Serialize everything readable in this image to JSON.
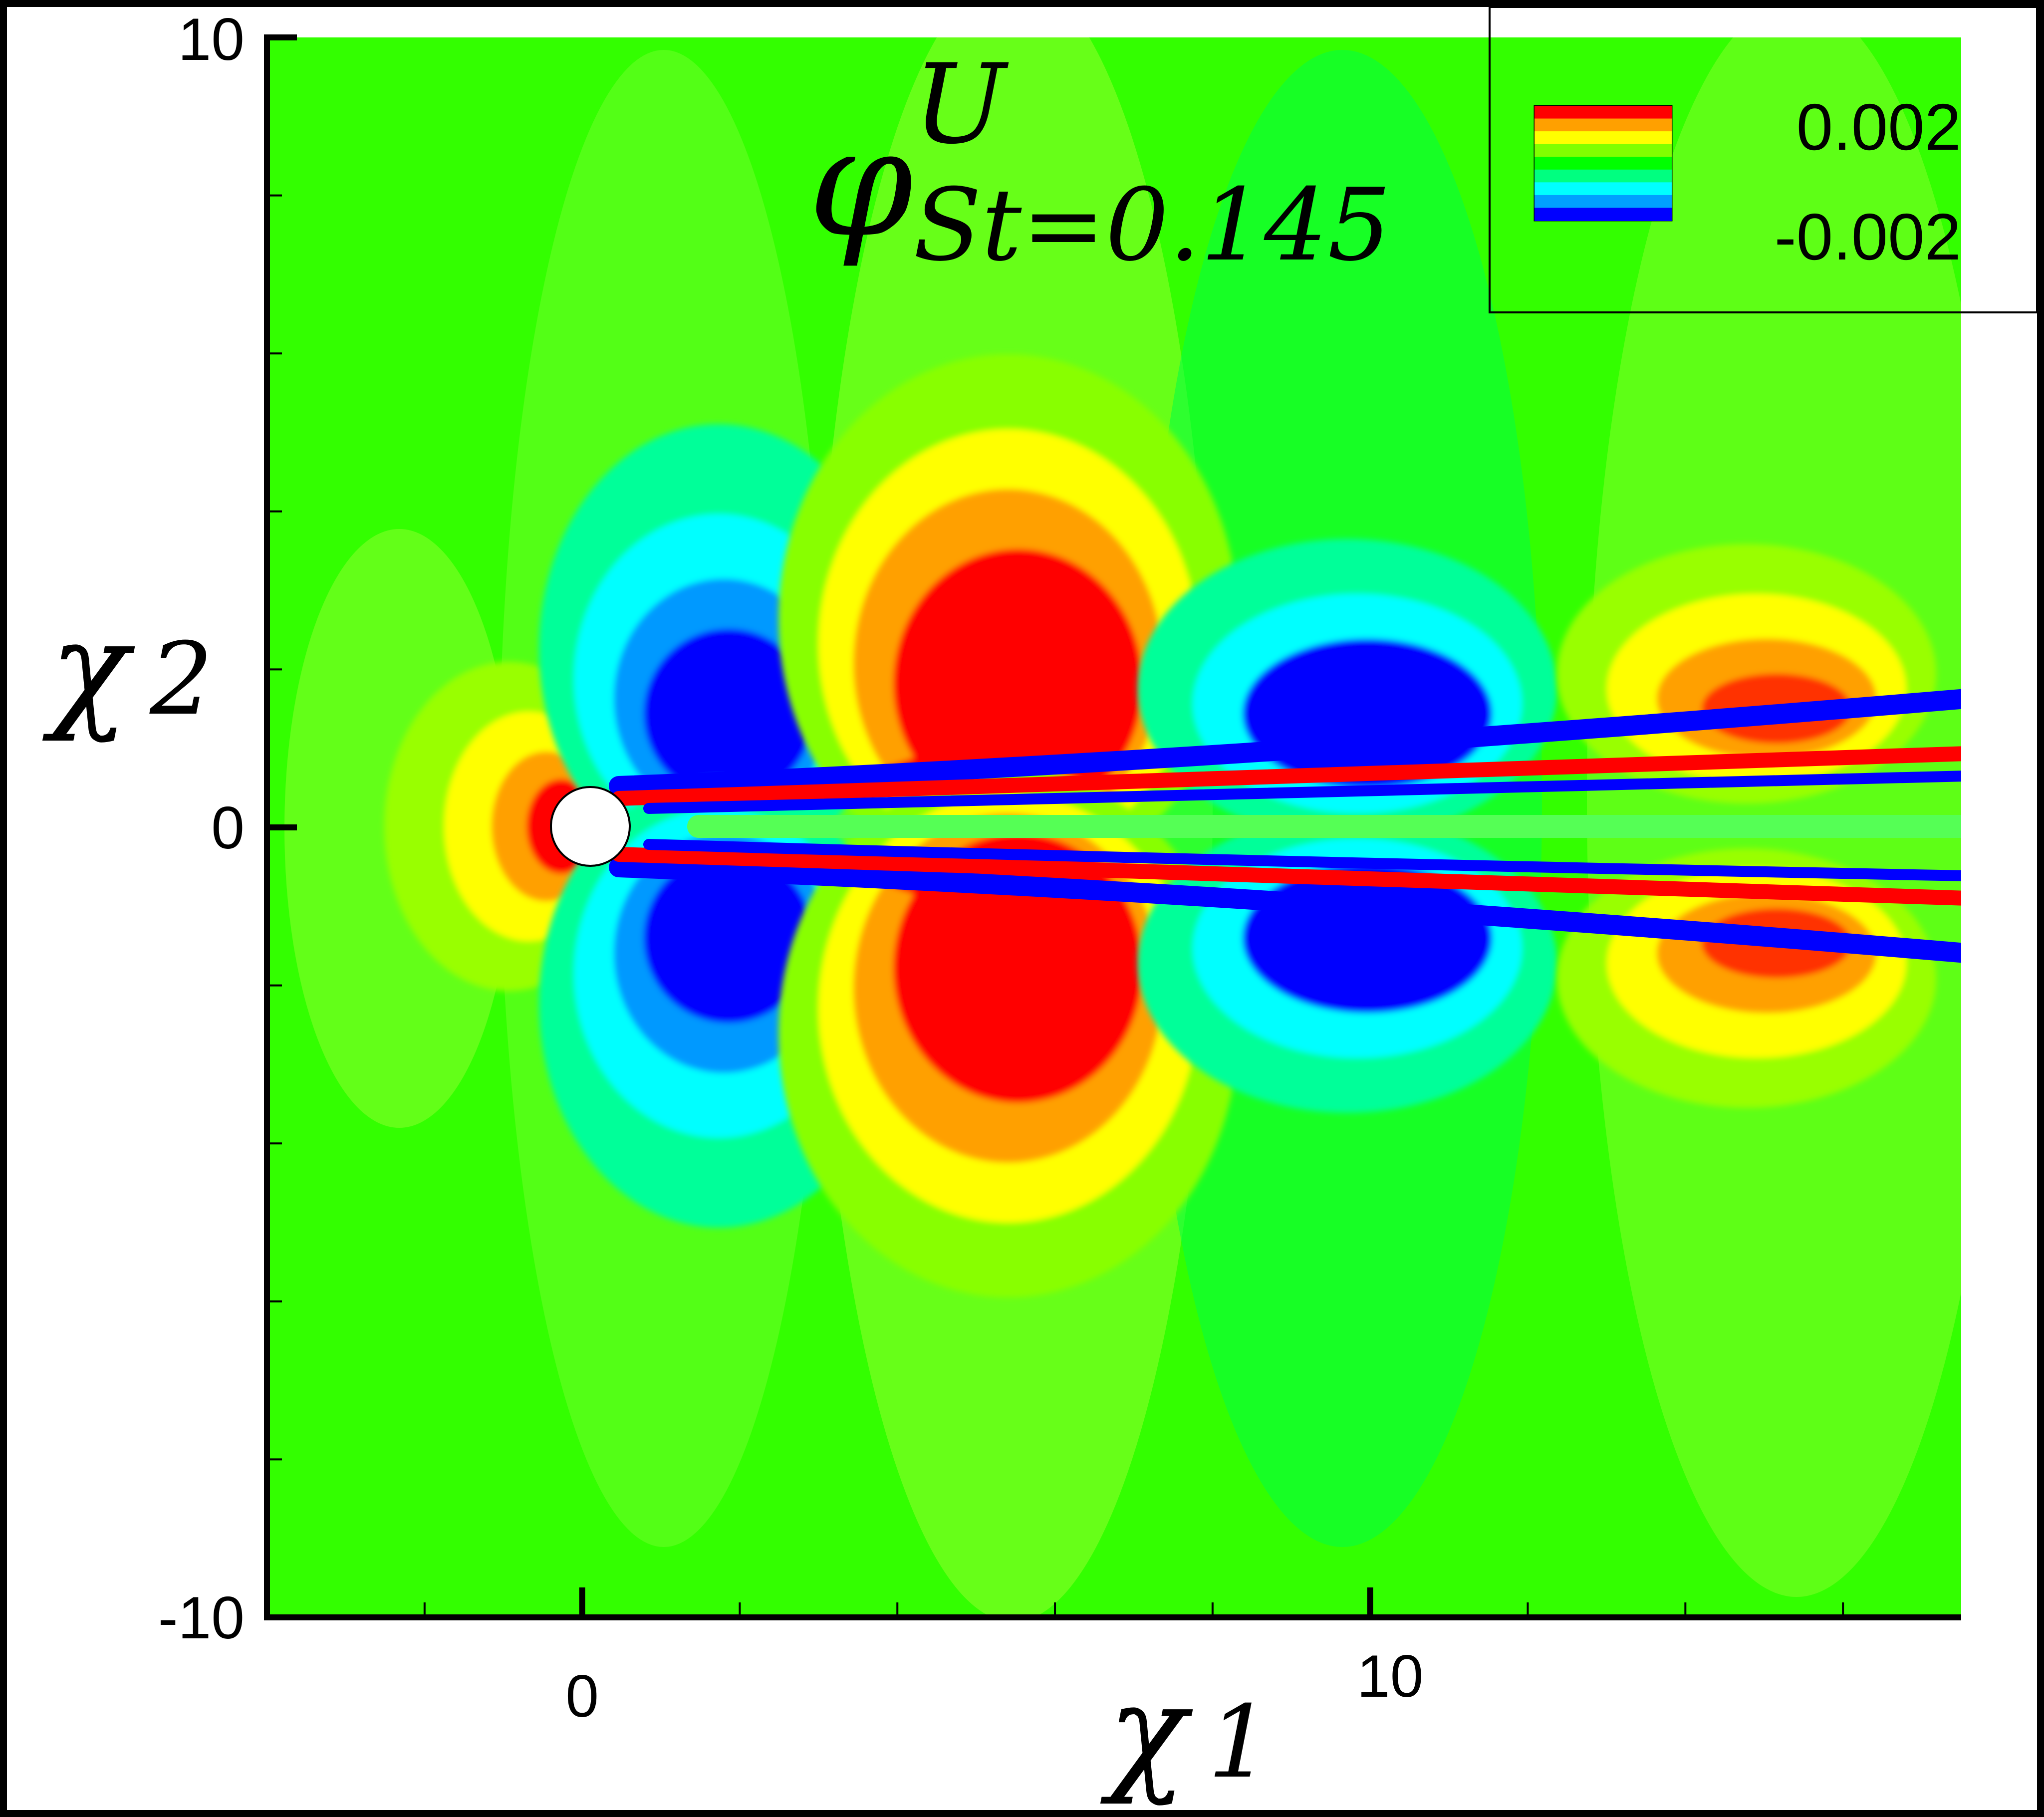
{
  "chart_data": {
    "type": "heatmap",
    "title": {
      "symbol": "φ",
      "superscript": "U",
      "subscript": "St=0.145"
    },
    "xlabel": {
      "symbol": "χ",
      "index": "1"
    },
    "ylabel": {
      "symbol": "χ",
      "index": "2"
    },
    "xlim": [
      -4,
      17.5
    ],
    "ylim": [
      -10,
      10
    ],
    "x_tick_labels": [
      {
        "value": 0,
        "label": "0"
      },
      {
        "value": 10,
        "label": "10"
      }
    ],
    "y_tick_labels": [
      {
        "value": 10,
        "label": "10"
      },
      {
        "value": 0,
        "label": "0"
      },
      {
        "value": -10,
        "label": "-10"
      }
    ],
    "x_minor_ticks": [
      -4,
      -2,
      0,
      2,
      4,
      6,
      8,
      10,
      12,
      14,
      16
    ],
    "y_minor_ticks": [
      10,
      8,
      6,
      4,
      2,
      0,
      -2,
      -4,
      -6,
      -8,
      -10
    ],
    "colorbar": {
      "max_label": "0.002",
      "min_label": "-0.002",
      "range": [
        -0.002,
        0.002
      ],
      "colormap": [
        "#0000ff",
        "#00a0ff",
        "#00ffff",
        "#00ff80",
        "#00ff00",
        "#80ff00",
        "#ffff00",
        "#ffa000",
        "#ff0000"
      ]
    },
    "cylinder": {
      "center": [
        0,
        0
      ],
      "radius": 0.5
    },
    "colors": {
      "background_field": "#33ff00",
      "positive": "#ff0000",
      "negative": "#0000ff"
    }
  }
}
